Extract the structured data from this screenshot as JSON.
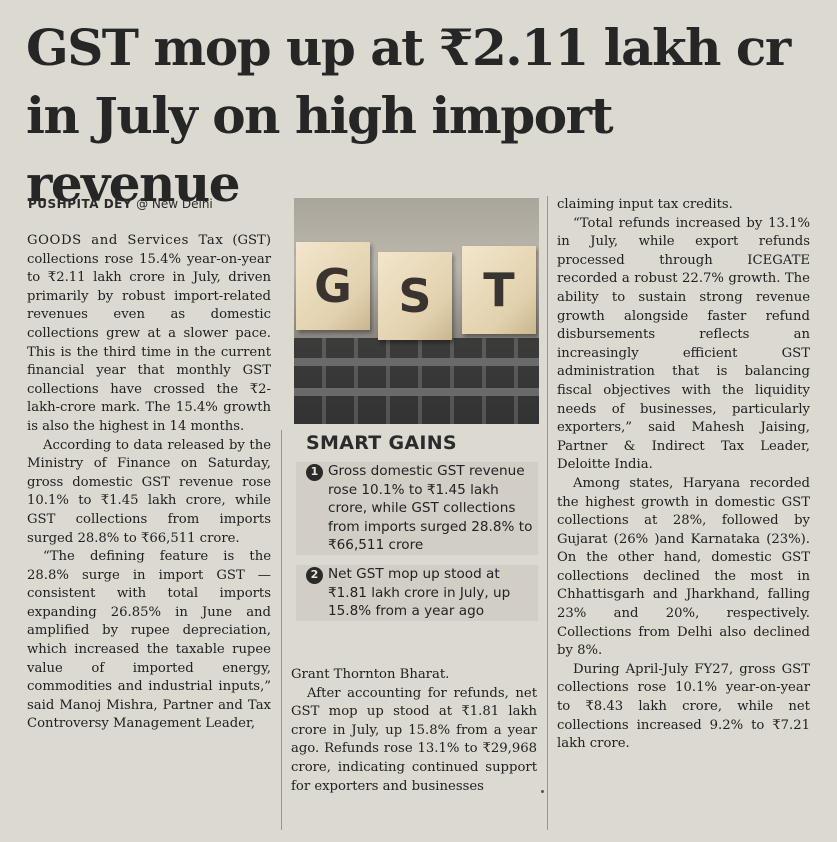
{
  "article": {
    "headline": "GST mop up at ₹2.11 lakh cr in July on high import revenue",
    "byline": {
      "author": "PUSHPITA DEY",
      "location": "@ New Delhi"
    },
    "col1": {
      "lede_cap": "GOODS and Services Tax",
      "p1_rest": "(GST) collections rose 15.4% year-on-year to ₹2.11 lakh crore in July, driven primarily by robust import-related revenues even as domestic collections grew at a slower pace. This is the third time in the current financial year that monthly GST collections have crossed the ₹2-lakh-crore mark. The 15.4% growth is also the highest in 14 months.",
      "p2": "According to data released by the Ministry of Finance on Saturday, gross domestic GST revenue rose 10.1% to ₹1.45 lakh crore, while GST collections from imports surged 28.8% to ₹66,511 crore.",
      "p3": "“The defining feature is the 28.8% surge in import GST — consistent with total imports expanding 26.85% in June and amplified by rupee depreciation, which increased the taxable rupee value of imported energy, commodities and industrial inputs,” said Manoj Mishra, Partner and Tax Controversy Management Leader,"
    },
    "col2": {
      "p1": "Grant Thornton Bharat.",
      "p2": "After accounting for refunds, net GST mop up stood at ₹1.81 lakh crore in July, up 15.8% from a year ago. Refunds rose 13.1% to ₹29,968 crore, indicating continued support for exporters and businesses"
    },
    "col3": {
      "p1": "claiming input tax credits.",
      "p2": "“Total refunds increased by 13.1% in July, while export refunds processed through ICEGATE recorded a robust 22.7% growth. The ability to sustain strong revenue growth alongside faster refund disbursements reflects an increasingly efficient GST administration that is balancing fiscal objectives with the liquidity needs of businesses, particularly exporters,” said Mahesh Jaising, Partner & Indirect Tax Leader, Deloitte India.",
      "p3": "Among states, Haryana recorded the highest growth in domestic GST collections at 28%, followed by Gujarat (26% )and Karnataka (23%). On the other hand, domestic GST collections declined the most in Chhattisgarh and Jharkhand, falling 23% and 20%, respectively. Collections from Delhi also declined by 8%.",
      "p4": "During April-July FY27, gross GST collections rose 10.1% year-on-year to ₹8.43 lakh crore, while net collections increased 9.2% to ₹7.21 lakh crore."
    }
  },
  "photo": {
    "letters": [
      "G",
      "S",
      "T"
    ]
  },
  "sidebar": {
    "title": "SMART GAINS",
    "items": [
      {
        "num": "1",
        "text": "Gross domestic GST revenue rose 10.1% to ₹1.45 lakh crore, while GST collections from imports surged 28.8% to ₹66,511 crore"
      },
      {
        "num": "2",
        "text": "Net GST mop up stood at ₹1.81 lakh crore in July, up 15.8% from a year ago"
      }
    ]
  }
}
